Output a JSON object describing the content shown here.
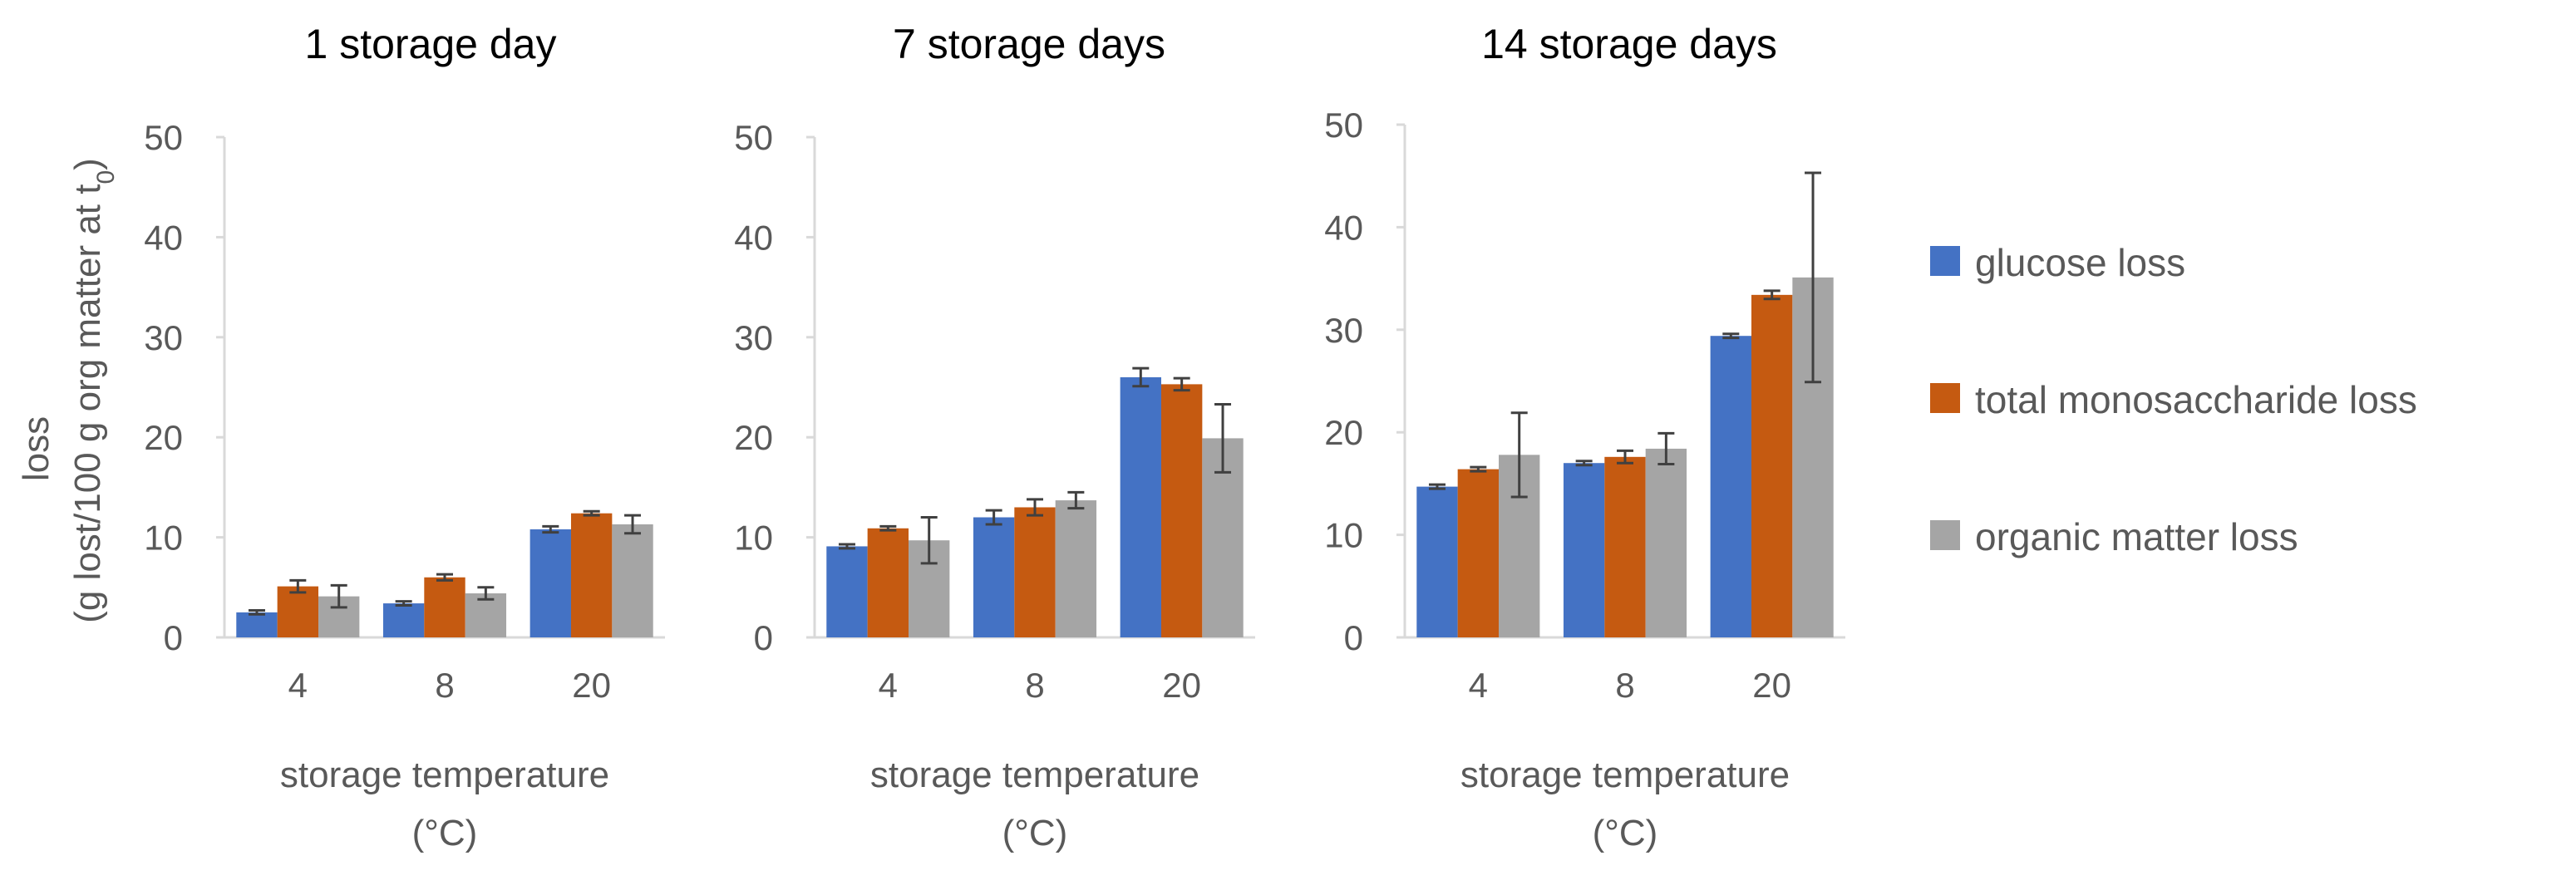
{
  "colors": {
    "glucose": "#4472C4",
    "monosaccharide": "#C55A11",
    "organic": "#A5A5A5",
    "axis": "#D9D9D9",
    "error": "#404040",
    "text": "#595959"
  },
  "ylabel_main": "loss",
  "ylabel_units_pre": "(g lost/100 g org matter at t",
  "ylabel_units_sub": "0",
  "ylabel_units_post": ")",
  "xlabel_line1": "storage temperature",
  "xlabel_line2": "(°C)",
  "legend": [
    {
      "name": "glucose loss",
      "color": "#4472C4"
    },
    {
      "name": "total monosaccharide loss",
      "color": "#C55A11"
    },
    {
      "name": "organic matter loss",
      "color": "#A5A5A5"
    }
  ],
  "chart_data": [
    {
      "type": "bar",
      "title": "1 storage day",
      "categories": [
        "4",
        "8",
        "20"
      ],
      "ylim": [
        0,
        50
      ],
      "yticks": [
        "0",
        "10",
        "20",
        "30",
        "40",
        "50"
      ],
      "xlabel": "storage temperature (°C)",
      "ylabel": "loss (g lost/100 g org matter at t0)",
      "series": [
        {
          "name": "glucose loss",
          "values": [
            2.5,
            3.4,
            10.8
          ],
          "errors": [
            0.2,
            0.2,
            0.3
          ]
        },
        {
          "name": "total monosaccharide loss",
          "values": [
            5.1,
            6.0,
            12.4
          ],
          "errors": [
            0.6,
            0.3,
            0.2
          ]
        },
        {
          "name": "organic matter loss",
          "values": [
            4.1,
            4.4,
            11.3
          ],
          "errors": [
            1.1,
            0.6,
            0.9
          ]
        }
      ]
    },
    {
      "type": "bar",
      "title": "7 storage days",
      "categories": [
        "4",
        "8",
        "20"
      ],
      "ylim": [
        0,
        50
      ],
      "yticks": [
        "0",
        "10",
        "20",
        "30",
        "40",
        "50"
      ],
      "xlabel": "storage temperature (°C)",
      "ylabel": "loss (g lost/100 g org matter at t0)",
      "series": [
        {
          "name": "glucose loss",
          "values": [
            9.1,
            12.0,
            26.0
          ],
          "errors": [
            0.2,
            0.7,
            0.9
          ]
        },
        {
          "name": "total monosaccharide loss",
          "values": [
            10.9,
            13.0,
            25.3
          ],
          "errors": [
            0.2,
            0.8,
            0.6
          ]
        },
        {
          "name": "organic matter loss",
          "values": [
            9.7,
            13.7,
            19.9
          ],
          "errors": [
            2.3,
            0.8,
            3.4
          ]
        }
      ]
    },
    {
      "type": "bar",
      "title": "14 storage days",
      "categories": [
        "4",
        "8",
        "20"
      ],
      "ylim": [
        0,
        50
      ],
      "yticks": [
        "0",
        "10",
        "20",
        "30",
        "40",
        "50"
      ],
      "xlabel": "storage temperature (°C)",
      "ylabel": "loss (g lost/100 g org matter at t0)",
      "series": [
        {
          "name": "glucose loss",
          "values": [
            14.7,
            17.0,
            29.4
          ],
          "errors": [
            0.2,
            0.2,
            0.2
          ]
        },
        {
          "name": "total monosaccharide loss",
          "values": [
            16.4,
            17.6,
            33.4
          ],
          "errors": [
            0.2,
            0.6,
            0.4
          ]
        },
        {
          "name": "organic matter loss",
          "values": [
            17.8,
            18.4,
            35.1
          ],
          "errors": [
            4.1,
            1.5,
            10.2
          ]
        }
      ]
    }
  ]
}
